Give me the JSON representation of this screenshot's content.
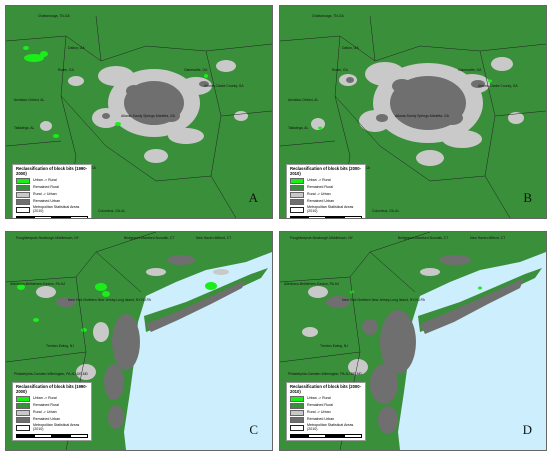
{
  "colors": {
    "urban_to_rural": "#19ee19",
    "remained_rural": "#3a8f3a",
    "rural_to_urban": "#c9c9c9",
    "remained_urban": "#6f6f6f",
    "msa_boundary": "#222222",
    "water": "#cdeefc"
  },
  "panels": [
    {
      "label": "A",
      "legend": {
        "title": "Reclassification of block bits (1990-2000)",
        "items": [
          "Urban -> Rural",
          "Remained Rural",
          "Rural -> Urban",
          "Remained Urban",
          "Metropolitan Statistical Areas (2010)"
        ]
      },
      "cities": [
        "Chattanooga, TN-GA",
        "Gainesville, GA",
        "Rome, GA",
        "Dalton, GA",
        "Atlanta-Sandy Springs-Marietta, GA",
        "Athens-Clarke County, GA",
        "Anniston-Oxford, AL",
        "Talladega, AL",
        "LaGrange, GA",
        "Columbus, GA-AL"
      ]
    },
    {
      "label": "B",
      "legend": {
        "title": "Reclassification of block bits (2000-2010)",
        "items": [
          "Urban -> Rural",
          "Remained Rural",
          "Rural -> Urban",
          "Remained Urban",
          "Metropolitan Statistical Areas (2010)"
        ]
      },
      "cities": [
        "Chattanooga, TN-GA",
        "Gainesville, GA",
        "Rome, GA",
        "Dalton, GA",
        "Atlanta-Sandy Springs-Marietta, GA",
        "Athens-Clarke County, GA",
        "Anniston-Oxford, AL",
        "Talladega, AL",
        "LaGrange, GA",
        "Columbus, GA-AL"
      ]
    },
    {
      "label": "C",
      "legend": {
        "title": "Reclassification of block bits (1990-2000)",
        "items": [
          "Urban -> Rural",
          "Remained Rural",
          "Rural -> Urban",
          "Remained Urban",
          "Metropolitan Statistical Areas (2010)"
        ]
      },
      "cities": [
        "Poughkeepsie-Newburgh-Middletown, NY",
        "Bridgeport-Stamford-Norwalk, CT",
        "New Haven-Milford, CT",
        "Allentown-Bethlehem-Easton, PA-NJ",
        "New York-Northern New Jersey-Long Island, NY-NJ-PA",
        "Trenton-Ewing, NJ",
        "Philadelphia-Camden-Wilmington, PA-NJ-DE-MD"
      ]
    },
    {
      "label": "D",
      "legend": {
        "title": "Reclassification of block bits (2000-2010)",
        "items": [
          "Urban -> Rural",
          "Remained Rural",
          "Rural -> Urban",
          "Remained Urban",
          "Metropolitan Statistical Areas (2010)"
        ]
      },
      "cities": [
        "Poughkeepsie-Newburgh-Middletown, NY",
        "Bridgeport-Stamford-Norwalk, CT",
        "New Haven-Milford, CT",
        "Allentown-Bethlehem-Easton, PA-NJ",
        "New York-Northern New Jersey-Long Island, NY-NJ-PA",
        "Trenton-Ewing, NJ",
        "Philadelphia-Camden-Wilmington, PA-NJ-DE-MD"
      ]
    }
  ]
}
